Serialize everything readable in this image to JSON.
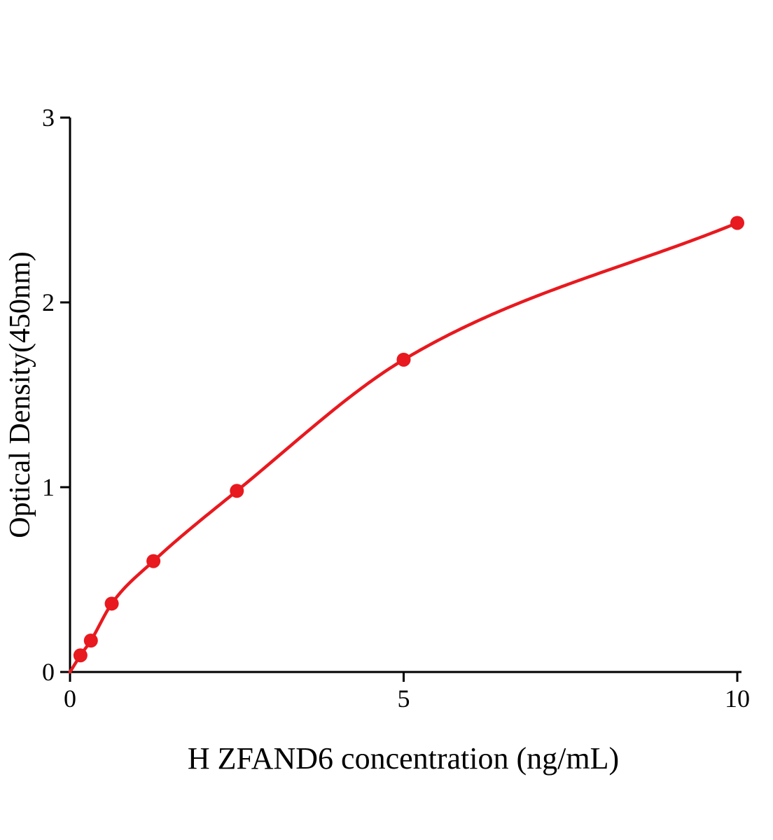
{
  "chart_data": {
    "type": "scatter",
    "title": "",
    "xlabel": "H ZFAND6 concentration (ng/mL)",
    "ylabel": "Optical Density(450nm)",
    "x": [
      0.156,
      0.3125,
      0.625,
      1.25,
      2.5,
      5,
      10
    ],
    "y": [
      0.09,
      0.17,
      0.37,
      0.6,
      0.98,
      1.69,
      2.43
    ],
    "curve_start": [
      0,
      0
    ],
    "xlim": [
      0,
      10
    ],
    "ylim": [
      0,
      3
    ],
    "x_ticks": [
      0,
      5,
      10
    ],
    "y_ticks": [
      0,
      1,
      2,
      3
    ],
    "grid": false,
    "legend_position": "none",
    "series_name": "standard-curve",
    "line_color": "#e8191f",
    "point_color": "#e8191f",
    "axis_color": "#000000"
  }
}
